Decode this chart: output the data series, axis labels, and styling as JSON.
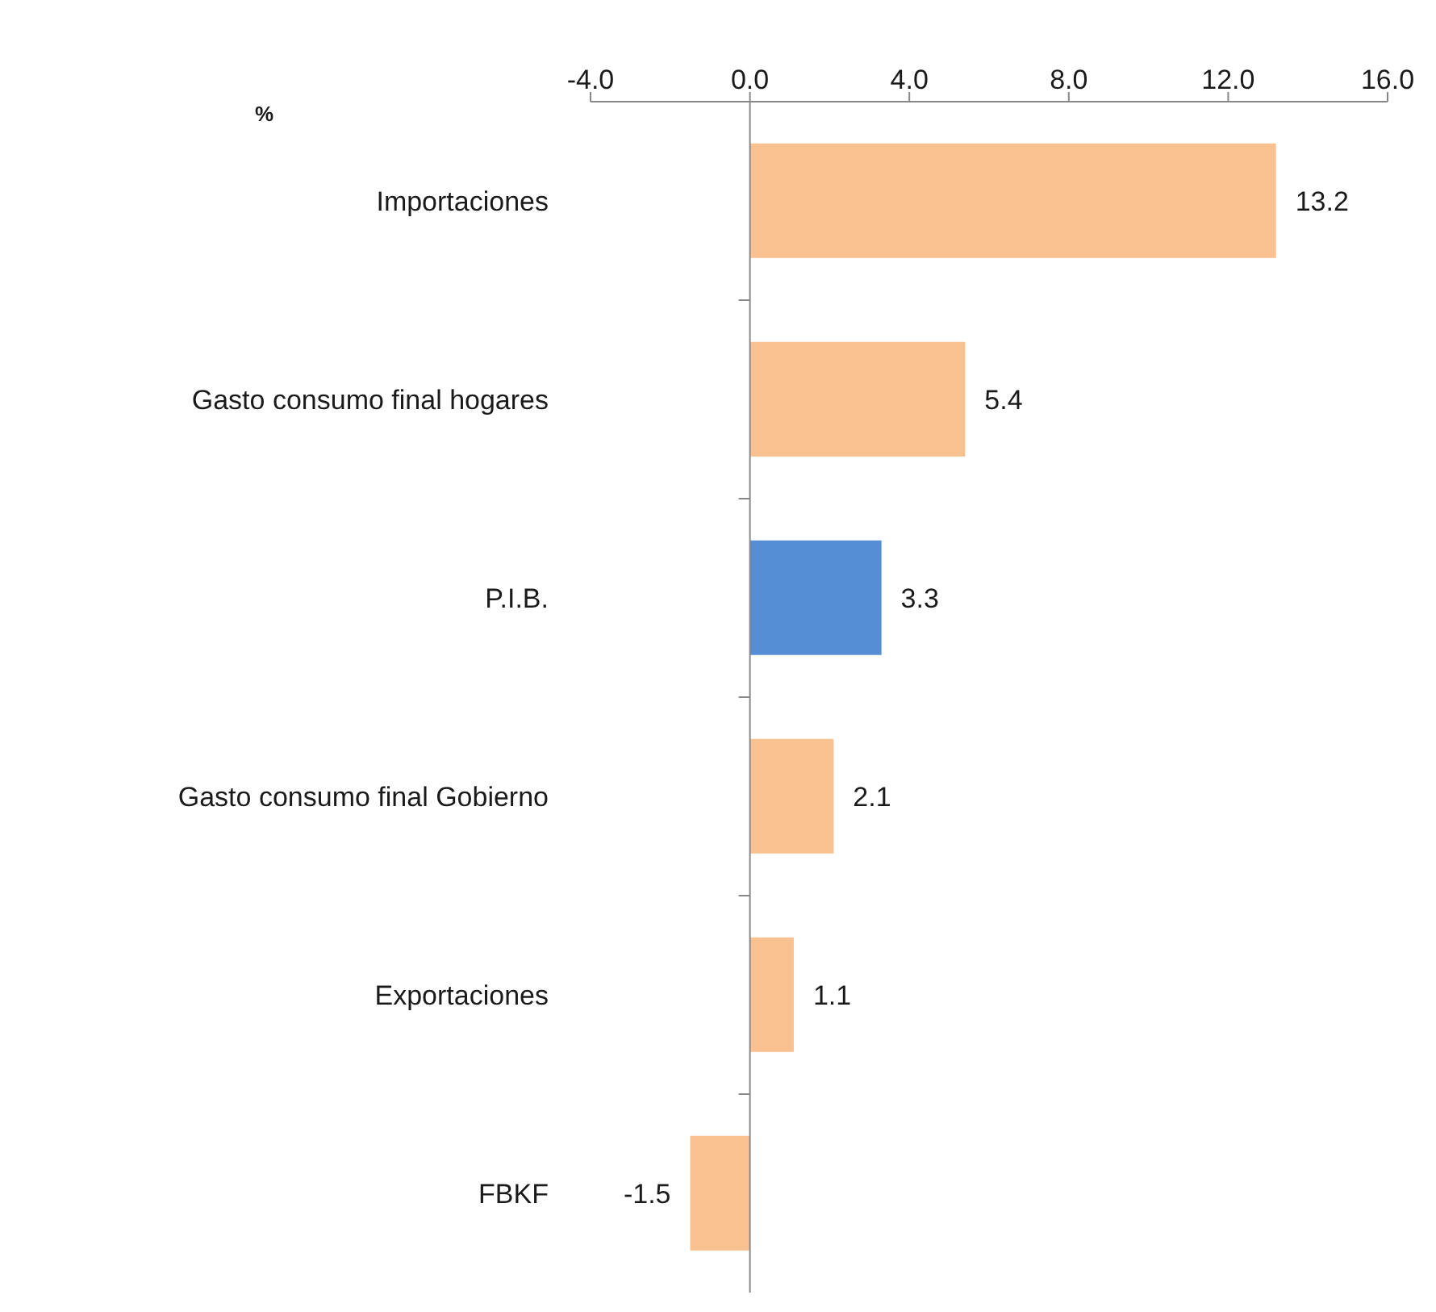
{
  "chart_data": {
    "type": "bar",
    "orientation": "horizontal",
    "xlabel": "%",
    "categories": [
      "Importaciones",
      "Gasto consumo final hogares",
      "P.I.B.",
      "Gasto consumo final Gobierno",
      "Exportaciones",
      "FBKF"
    ],
    "values": [
      13.2,
      5.4,
      3.3,
      2.1,
      1.1,
      -1.5
    ],
    "colors": [
      "#f9c090",
      "#f9c090",
      "#558ed5",
      "#f9c090",
      "#f9c090",
      "#f9c090"
    ],
    "xlim": [
      -4,
      16
    ],
    "xticks": [
      {
        "value": -4,
        "label": "-4.0"
      },
      {
        "value": 0,
        "label": "0.0"
      },
      {
        "value": 4,
        "label": "4.0"
      },
      {
        "value": 8,
        "label": "8.0"
      },
      {
        "value": 12,
        "label": "12.0"
      },
      {
        "value": 16,
        "label": "16.0"
      }
    ],
    "data_labels": true,
    "legend": false
  }
}
